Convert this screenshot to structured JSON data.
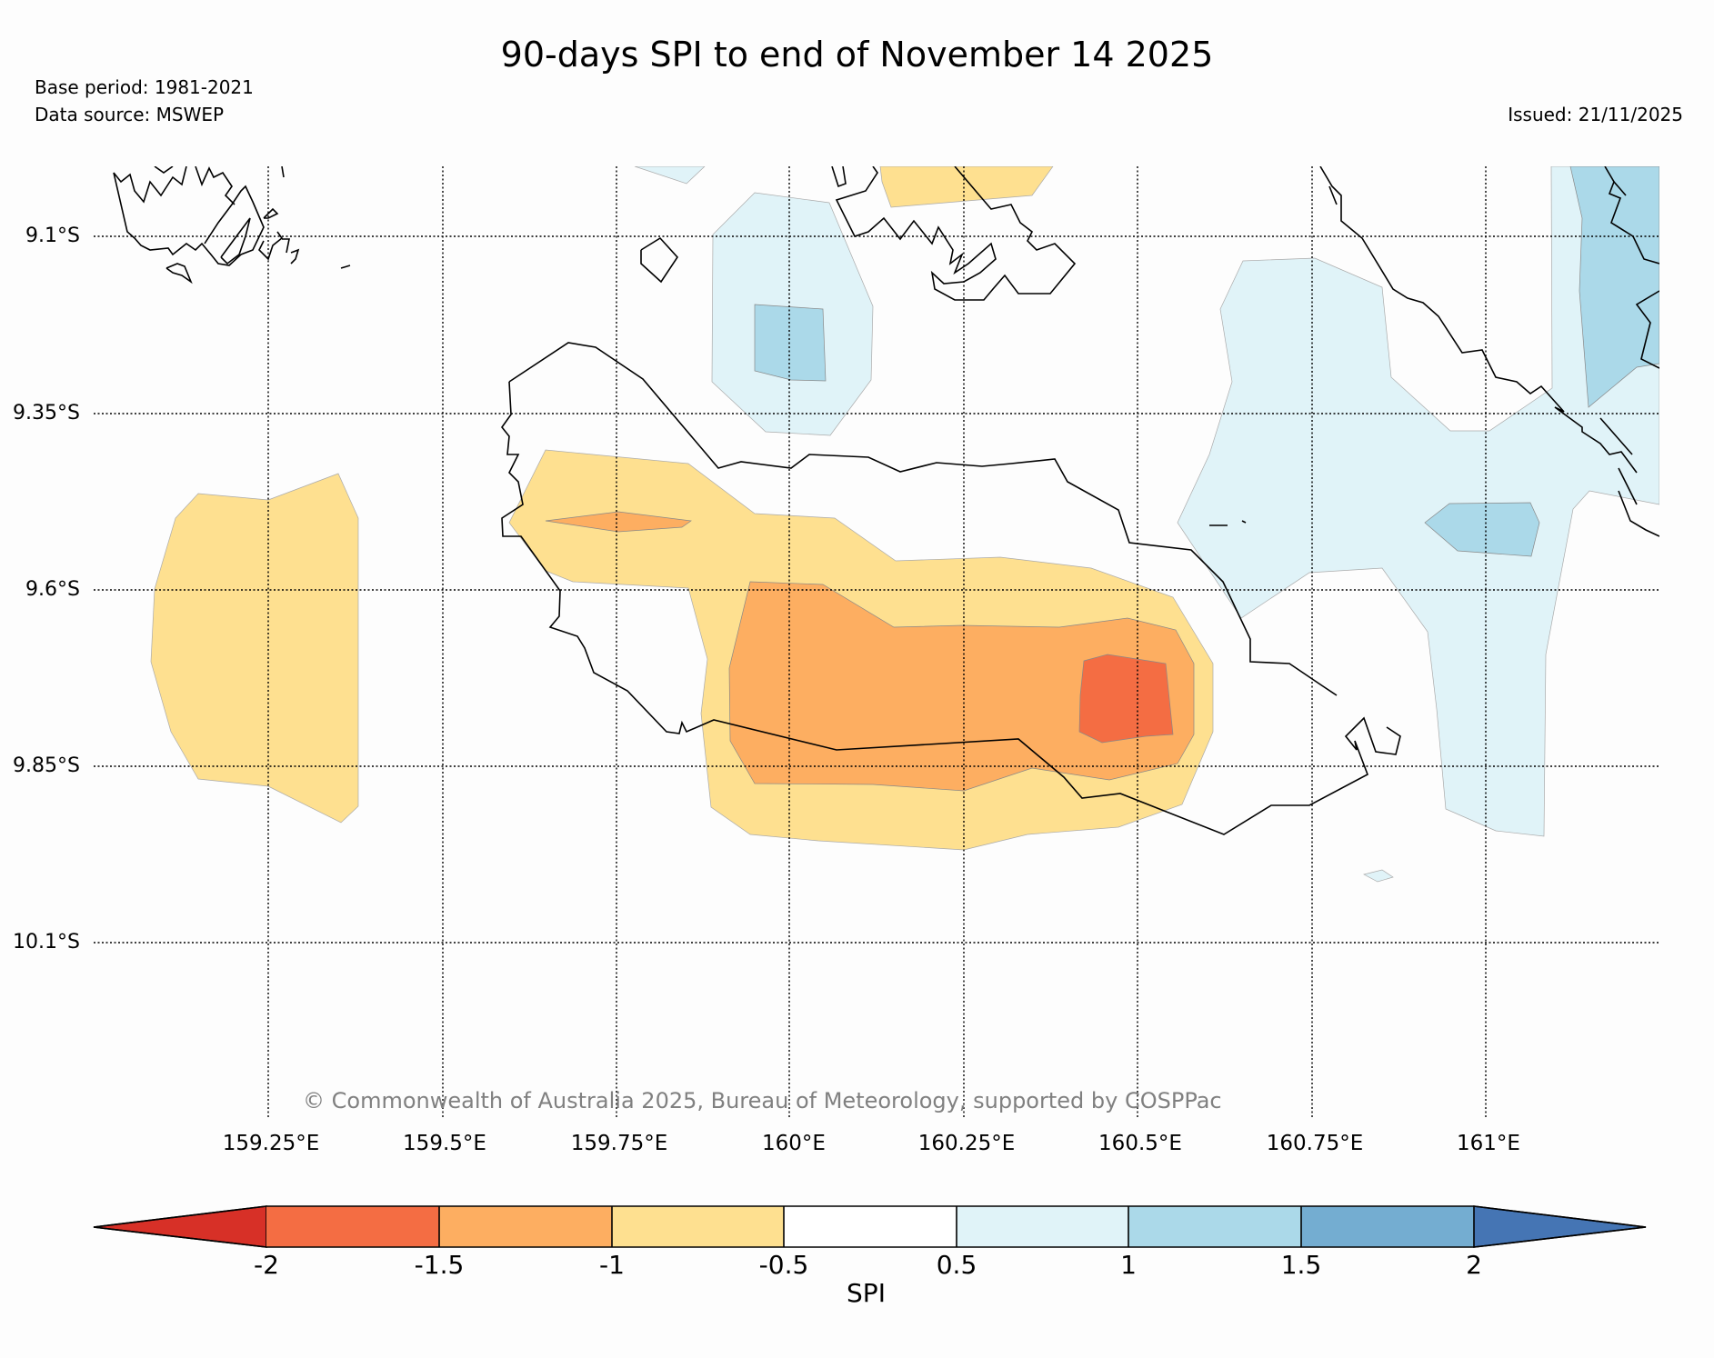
{
  "header": {
    "title": "90-days SPI to end of November 14 2025",
    "base_period": "Base period: 1981-2021",
    "data_source": "Data source: MSWEP",
    "issued": "Issued: 21/11/2025"
  },
  "map": {
    "lat_labels": [
      "9.1°S",
      "9.35°S",
      "9.6°S",
      "9.85°S",
      "10.1°S"
    ],
    "lon_labels": [
      "159.25°E",
      "159.5°E",
      "159.75°E",
      "160°E",
      "160.25°E",
      "160.5°E",
      "160.75°E",
      "161°E"
    ],
    "copyright": "© Commonwealth of Australia 2025, Bureau of Meteorology, supported by COSPPac"
  },
  "colorbar": {
    "title": "SPI",
    "ticks": [
      "-2",
      "-1.5",
      "-1",
      "-0.5",
      "0.5",
      "1",
      "1.5",
      "2"
    ],
    "colors": {
      "below_-2": "#d73027",
      "-2_-1.5": "#f46d43",
      "-1.5_-1": "#fdae61",
      "-1_-0.5": "#fee090",
      "-0.5_0.5": "#ffffff",
      "0.5_1": "#e0f3f8",
      "1_1.5": "#abd9e9",
      "1.5_2": "#74add1",
      "above_2": "#4575b4"
    }
  }
}
